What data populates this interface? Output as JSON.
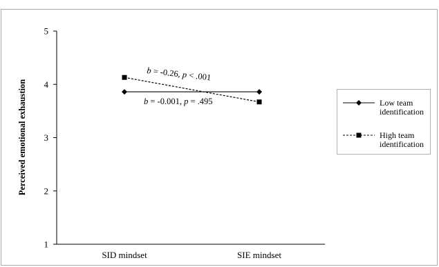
{
  "chart_data": {
    "type": "line",
    "categories": [
      "SID mindset",
      "SIE mindset"
    ],
    "ylabel": "Perceived emotional exhaustion",
    "xlabel": "",
    "ylim": [
      1,
      5
    ],
    "yticks": [
      "1",
      "2",
      "3",
      "4",
      "5"
    ],
    "grid": false,
    "legend_position": "right",
    "series": [
      {
        "name": "Low team identification",
        "name_lines": [
          "Low team",
          "identification"
        ],
        "values": [
          3.86,
          3.86
        ],
        "line_style": "solid",
        "marker": "diamond",
        "color": "#000000"
      },
      {
        "name": "High team identification",
        "name_lines": [
          "High team",
          "identification"
        ],
        "values": [
          4.13,
          3.67
        ],
        "line_style": "dashed",
        "marker": "square",
        "color": "#000000"
      }
    ],
    "annotations": [
      {
        "label": "high-slope",
        "parts": [
          {
            "text": "b",
            "italic": true
          },
          {
            "text": " = -0.26, ",
            "italic": false
          },
          {
            "text": "p",
            "italic": true
          },
          {
            "text": " < .001",
            "italic": false
          }
        ]
      },
      {
        "label": "low-slope",
        "parts": [
          {
            "text": "b",
            "italic": true
          },
          {
            "text": " = -0.001, ",
            "italic": false
          },
          {
            "text": "p",
            "italic": true
          },
          {
            "text": " = .495",
            "italic": false
          }
        ]
      }
    ]
  }
}
